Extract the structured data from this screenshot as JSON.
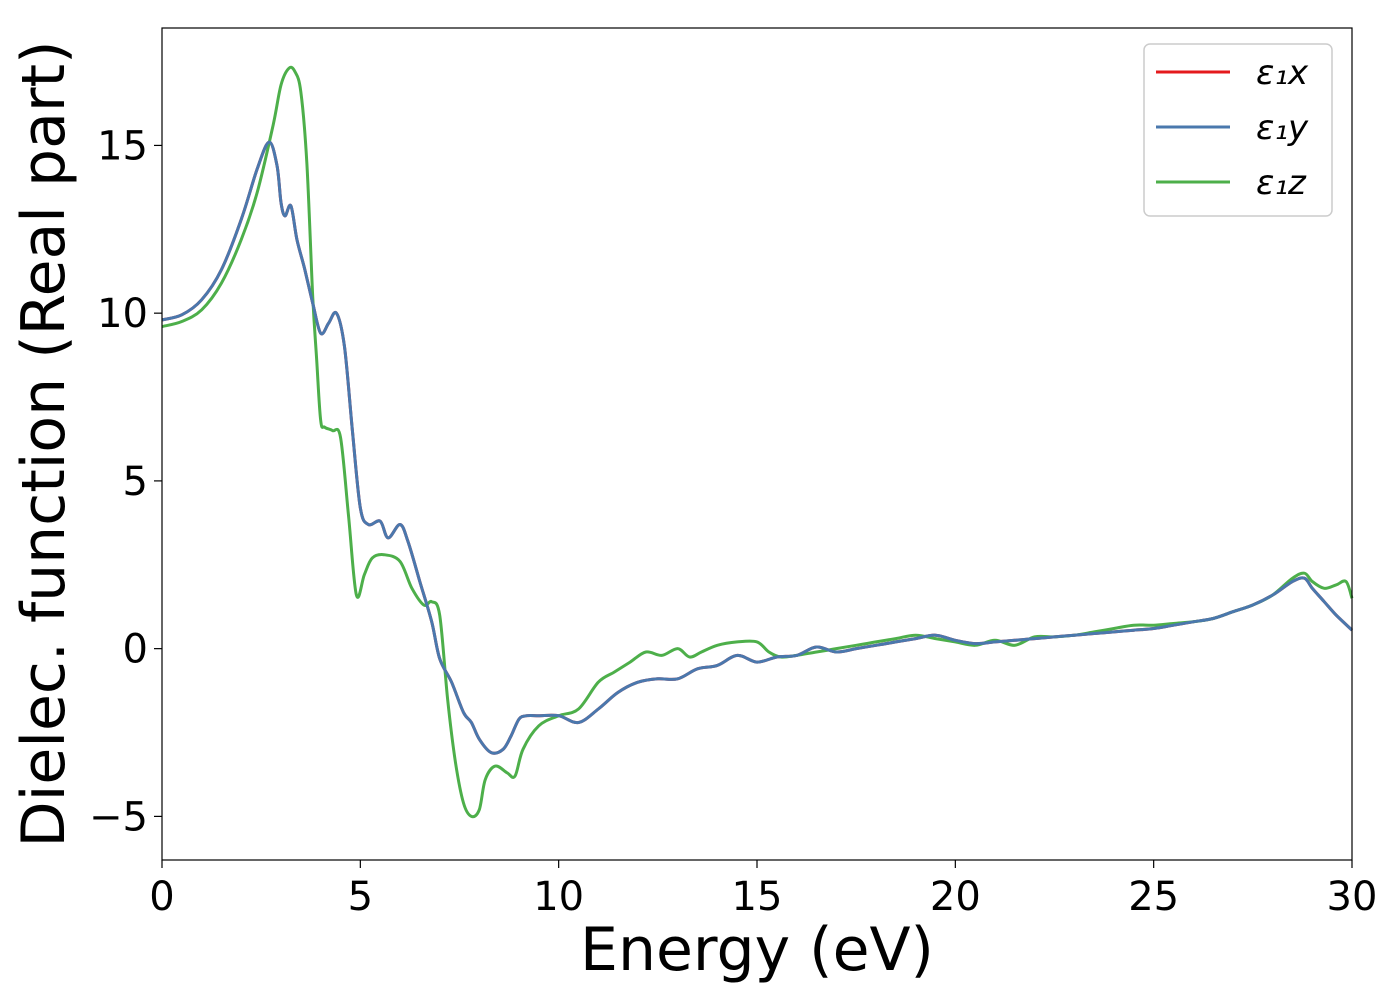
{
  "chart_data": {
    "type": "line",
    "xlabel": "Energy (eV)",
    "ylabel": "Dielec. function (Real part)",
    "xlim": [
      0,
      30
    ],
    "ylim": [
      -6.3,
      18.5
    ],
    "xticks": [
      0,
      5,
      10,
      15,
      20,
      25,
      30
    ],
    "yticks": [
      -5,
      0,
      5,
      10,
      15
    ],
    "yticklabels": [
      "−5",
      "0",
      "5",
      "10",
      "15"
    ],
    "grid": false,
    "legend_position": "top-right",
    "series": [
      {
        "name": "ε₁x",
        "color": "#e41a1c",
        "x": [
          0,
          0.5,
          1,
          1.5,
          2,
          2.4,
          2.7,
          2.9,
          3.0,
          3.1,
          3.25,
          3.4,
          3.6,
          3.8,
          4.0,
          4.2,
          4.4,
          4.6,
          4.8,
          5.0,
          5.2,
          5.5,
          5.7,
          6.0,
          6.2,
          6.5,
          6.8,
          7.0,
          7.3,
          7.6,
          7.8,
          8.0,
          8.3,
          8.6,
          8.8,
          9.0,
          9.2,
          9.5,
          10.0,
          10.5,
          11.0,
          11.5,
          12.0,
          12.5,
          13.0,
          13.5,
          14.0,
          14.5,
          15.0,
          15.5,
          16.0,
          16.5,
          17.0,
          17.5,
          18.0,
          18.5,
          19.0,
          19.5,
          20.0,
          20.5,
          21.0,
          21.5,
          22.0,
          22.5,
          23.0,
          23.5,
          24.0,
          24.5,
          25.0,
          25.5,
          26.0,
          26.5,
          27.0,
          27.5,
          28.0,
          28.5,
          28.8,
          29.0,
          29.3,
          29.6,
          30.0
        ],
        "y": [
          9.8,
          9.95,
          10.4,
          11.3,
          12.8,
          14.3,
          15.1,
          14.4,
          13.3,
          12.9,
          13.2,
          12.2,
          11.3,
          10.3,
          9.4,
          9.7,
          10.0,
          9.0,
          6.5,
          4.2,
          3.7,
          3.8,
          3.3,
          3.7,
          3.2,
          2.0,
          0.8,
          -0.3,
          -1.0,
          -1.9,
          -2.2,
          -2.7,
          -3.1,
          -3.0,
          -2.6,
          -2.1,
          -2.0,
          -2.0,
          -2.0,
          -2.2,
          -1.8,
          -1.3,
          -1.0,
          -0.9,
          -0.9,
          -0.6,
          -0.5,
          -0.2,
          -0.4,
          -0.25,
          -0.2,
          0.05,
          -0.1,
          0.0,
          0.1,
          0.2,
          0.3,
          0.4,
          0.25,
          0.15,
          0.2,
          0.25,
          0.3,
          0.35,
          0.4,
          0.45,
          0.5,
          0.55,
          0.6,
          0.7,
          0.8,
          0.9,
          1.1,
          1.3,
          1.6,
          2.0,
          2.1,
          1.8,
          1.4,
          1.0,
          0.55
        ]
      },
      {
        "name": "ε₁y",
        "color": "#4a78ad",
        "x": [
          0,
          0.5,
          1,
          1.5,
          2,
          2.4,
          2.7,
          2.9,
          3.0,
          3.1,
          3.25,
          3.4,
          3.6,
          3.8,
          4.0,
          4.2,
          4.4,
          4.6,
          4.8,
          5.0,
          5.2,
          5.5,
          5.7,
          6.0,
          6.2,
          6.5,
          6.8,
          7.0,
          7.3,
          7.6,
          7.8,
          8.0,
          8.3,
          8.6,
          8.8,
          9.0,
          9.2,
          9.5,
          10.0,
          10.5,
          11.0,
          11.5,
          12.0,
          12.5,
          13.0,
          13.5,
          14.0,
          14.5,
          15.0,
          15.5,
          16.0,
          16.5,
          17.0,
          17.5,
          18.0,
          18.5,
          19.0,
          19.5,
          20.0,
          20.5,
          21.0,
          21.5,
          22.0,
          22.5,
          23.0,
          23.5,
          24.0,
          24.5,
          25.0,
          25.5,
          26.0,
          26.5,
          27.0,
          27.5,
          28.0,
          28.5,
          28.8,
          29.0,
          29.3,
          29.6,
          30.0
        ],
        "y": [
          9.8,
          9.95,
          10.4,
          11.3,
          12.8,
          14.3,
          15.1,
          14.4,
          13.3,
          12.9,
          13.2,
          12.2,
          11.3,
          10.3,
          9.4,
          9.7,
          10.0,
          9.0,
          6.5,
          4.2,
          3.7,
          3.8,
          3.3,
          3.7,
          3.2,
          2.0,
          0.8,
          -0.3,
          -1.0,
          -1.9,
          -2.2,
          -2.7,
          -3.1,
          -3.0,
          -2.6,
          -2.1,
          -2.0,
          -2.0,
          -2.0,
          -2.2,
          -1.8,
          -1.3,
          -1.0,
          -0.9,
          -0.9,
          -0.6,
          -0.5,
          -0.2,
          -0.4,
          -0.25,
          -0.2,
          0.05,
          -0.1,
          0.0,
          0.1,
          0.2,
          0.3,
          0.4,
          0.25,
          0.15,
          0.2,
          0.25,
          0.3,
          0.35,
          0.4,
          0.45,
          0.5,
          0.55,
          0.6,
          0.7,
          0.8,
          0.9,
          1.1,
          1.3,
          1.6,
          2.0,
          2.1,
          1.8,
          1.4,
          1.0,
          0.55
        ]
      },
      {
        "name": "ε₁z",
        "color": "#4daf4a",
        "x": [
          0,
          0.5,
          1,
          1.5,
          2,
          2.4,
          2.8,
          3.0,
          3.2,
          3.35,
          3.5,
          3.65,
          3.8,
          3.9,
          4.0,
          4.1,
          4.3,
          4.5,
          4.7,
          4.9,
          5.1,
          5.3,
          5.6,
          6.0,
          6.3,
          6.6,
          6.8,
          7.0,
          7.2,
          7.4,
          7.6,
          7.8,
          8.0,
          8.15,
          8.4,
          8.7,
          8.9,
          9.1,
          9.5,
          10.0,
          10.5,
          11.0,
          11.4,
          11.8,
          12.2,
          12.6,
          13.0,
          13.3,
          13.6,
          14.0,
          14.5,
          15.0,
          15.3,
          15.6,
          16.0,
          16.5,
          17.0,
          17.5,
          18.0,
          18.5,
          19.0,
          19.5,
          20.0,
          20.5,
          21.0,
          21.5,
          22.0,
          22.5,
          23.0,
          23.5,
          24.0,
          24.5,
          25.0,
          25.5,
          26.0,
          26.5,
          27.0,
          27.5,
          28.0,
          28.5,
          28.8,
          29.0,
          29.3,
          29.6,
          29.85,
          30.0
        ],
        "y": [
          9.6,
          9.75,
          10.1,
          10.9,
          12.2,
          13.6,
          15.6,
          16.8,
          17.3,
          17.2,
          16.6,
          14.5,
          10.5,
          8.6,
          6.8,
          6.6,
          6.5,
          6.3,
          4.0,
          1.6,
          2.2,
          2.7,
          2.8,
          2.6,
          1.8,
          1.3,
          1.4,
          1.0,
          -1.5,
          -3.4,
          -4.6,
          -5.0,
          -4.8,
          -3.9,
          -3.5,
          -3.7,
          -3.8,
          -3.0,
          -2.3,
          -2.0,
          -1.8,
          -1.0,
          -0.7,
          -0.4,
          -0.1,
          -0.2,
          0.0,
          -0.25,
          -0.1,
          0.1,
          0.2,
          0.2,
          -0.1,
          -0.25,
          -0.2,
          -0.1,
          0.0,
          0.1,
          0.2,
          0.3,
          0.4,
          0.3,
          0.2,
          0.1,
          0.25,
          0.1,
          0.35,
          0.35,
          0.4,
          0.5,
          0.6,
          0.7,
          0.7,
          0.75,
          0.8,
          0.9,
          1.1,
          1.3,
          1.6,
          2.1,
          2.25,
          2.0,
          1.8,
          1.9,
          2.0,
          1.5
        ]
      }
    ]
  }
}
